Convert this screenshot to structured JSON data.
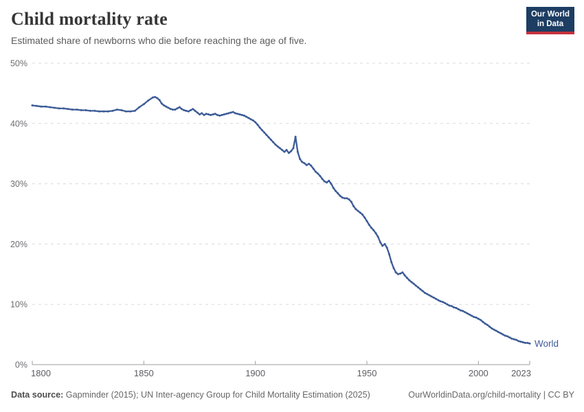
{
  "header": {
    "title": "Child mortality rate",
    "subtitle": "Estimated share of newborns who die before reaching the age of five.",
    "logo": {
      "line1": "Our World",
      "line2": "in Data"
    }
  },
  "footer": {
    "datasource_label": "Data source:",
    "datasource_text": " Gapminder (2015); UN Inter-agency Group for Child Mortality Estimation (2025)",
    "attribution": "OurWorldinData.org/child-mortality | CC BY"
  },
  "colors": {
    "line": "#3d5c97",
    "end_label": "#3d5c97",
    "logo_bg": "#1d3d63",
    "logo_bar": "#c5303e",
    "grid": "#d9d9d9",
    "axis": "#9e9e9e",
    "y_tick_label": "#6e6e73",
    "x_tick_label": "#5d5d63",
    "title": "#363636",
    "subtitle": "#5b5b5b",
    "footer": "#666666"
  },
  "chart_data": {
    "type": "line",
    "title": "Child mortality rate",
    "xlabel": "",
    "ylabel": "",
    "xlim": [
      1800,
      2023
    ],
    "ylim": [
      0,
      50
    ],
    "x_ticks": [
      1800,
      1850,
      1900,
      1950,
      2000,
      2023
    ],
    "y_ticks": [
      0,
      10,
      20,
      30,
      40,
      50
    ],
    "y_tick_suffix": "%",
    "grid": "dashed-horizontal",
    "legend_position": "end-of-line",
    "series": [
      {
        "name": "World",
        "points": [
          [
            1800,
            43.0
          ],
          [
            1802,
            42.9
          ],
          [
            1804,
            42.8
          ],
          [
            1806,
            42.8
          ],
          [
            1808,
            42.7
          ],
          [
            1810,
            42.6
          ],
          [
            1812,
            42.5
          ],
          [
            1814,
            42.5
          ],
          [
            1816,
            42.4
          ],
          [
            1818,
            42.3
          ],
          [
            1820,
            42.3
          ],
          [
            1822,
            42.2
          ],
          [
            1824,
            42.2
          ],
          [
            1826,
            42.1
          ],
          [
            1828,
            42.1
          ],
          [
            1830,
            42.0
          ],
          [
            1832,
            42.0
          ],
          [
            1834,
            42.0
          ],
          [
            1836,
            42.1
          ],
          [
            1838,
            42.3
          ],
          [
            1840,
            42.2
          ],
          [
            1842,
            42.0
          ],
          [
            1844,
            42.0
          ],
          [
            1846,
            42.1
          ],
          [
            1848,
            42.7
          ],
          [
            1850,
            43.2
          ],
          [
            1852,
            43.8
          ],
          [
            1854,
            44.3
          ],
          [
            1855,
            44.4
          ],
          [
            1856,
            44.2
          ],
          [
            1857,
            43.9
          ],
          [
            1858,
            43.3
          ],
          [
            1859,
            43.0
          ],
          [
            1860,
            42.8
          ],
          [
            1861,
            42.6
          ],
          [
            1862,
            42.4
          ],
          [
            1863,
            42.3
          ],
          [
            1864,
            42.3
          ],
          [
            1865,
            42.5
          ],
          [
            1866,
            42.7
          ],
          [
            1867,
            42.4
          ],
          [
            1868,
            42.2
          ],
          [
            1869,
            42.1
          ],
          [
            1870,
            42.0
          ],
          [
            1871,
            42.2
          ],
          [
            1872,
            42.4
          ],
          [
            1873,
            42.1
          ],
          [
            1874,
            41.8
          ],
          [
            1875,
            41.5
          ],
          [
            1876,
            41.7
          ],
          [
            1877,
            41.4
          ],
          [
            1878,
            41.6
          ],
          [
            1879,
            41.5
          ],
          [
            1880,
            41.4
          ],
          [
            1881,
            41.5
          ],
          [
            1882,
            41.6
          ],
          [
            1883,
            41.4
          ],
          [
            1884,
            41.3
          ],
          [
            1885,
            41.4
          ],
          [
            1886,
            41.5
          ],
          [
            1887,
            41.6
          ],
          [
            1888,
            41.7
          ],
          [
            1889,
            41.8
          ],
          [
            1890,
            41.9
          ],
          [
            1891,
            41.7
          ],
          [
            1892,
            41.6
          ],
          [
            1893,
            41.5
          ],
          [
            1894,
            41.4
          ],
          [
            1895,
            41.3
          ],
          [
            1896,
            41.1
          ],
          [
            1897,
            40.9
          ],
          [
            1898,
            40.7
          ],
          [
            1899,
            40.5
          ],
          [
            1900,
            40.2
          ],
          [
            1901,
            39.8
          ],
          [
            1902,
            39.3
          ],
          [
            1903,
            38.9
          ],
          [
            1904,
            38.5
          ],
          [
            1905,
            38.1
          ],
          [
            1906,
            37.7
          ],
          [
            1907,
            37.3
          ],
          [
            1908,
            36.9
          ],
          [
            1909,
            36.5
          ],
          [
            1910,
            36.2
          ],
          [
            1911,
            35.9
          ],
          [
            1912,
            35.6
          ],
          [
            1913,
            35.3
          ],
          [
            1914,
            35.6
          ],
          [
            1915,
            35.1
          ],
          [
            1916,
            35.4
          ],
          [
            1917,
            35.9
          ],
          [
            1918,
            37.8
          ],
          [
            1919,
            35.3
          ],
          [
            1920,
            34.1
          ],
          [
            1921,
            33.6
          ],
          [
            1922,
            33.4
          ],
          [
            1923,
            33.1
          ],
          [
            1924,
            33.3
          ],
          [
            1925,
            33.0
          ],
          [
            1926,
            32.5
          ],
          [
            1927,
            32.0
          ],
          [
            1928,
            31.7
          ],
          [
            1929,
            31.3
          ],
          [
            1930,
            30.8
          ],
          [
            1931,
            30.4
          ],
          [
            1932,
            30.2
          ],
          [
            1933,
            30.5
          ],
          [
            1934,
            30.0
          ],
          [
            1935,
            29.3
          ],
          [
            1936,
            28.8
          ],
          [
            1937,
            28.4
          ],
          [
            1938,
            28.0
          ],
          [
            1939,
            27.7
          ],
          [
            1940,
            27.6
          ],
          [
            1941,
            27.6
          ],
          [
            1942,
            27.4
          ],
          [
            1943,
            27.0
          ],
          [
            1944,
            26.3
          ],
          [
            1945,
            25.8
          ],
          [
            1946,
            25.5
          ],
          [
            1947,
            25.2
          ],
          [
            1948,
            24.9
          ],
          [
            1949,
            24.4
          ],
          [
            1950,
            23.8
          ],
          [
            1951,
            23.2
          ],
          [
            1952,
            22.7
          ],
          [
            1953,
            22.3
          ],
          [
            1954,
            21.8
          ],
          [
            1955,
            21.2
          ],
          [
            1956,
            20.3
          ],
          [
            1957,
            19.7
          ],
          [
            1958,
            20.0
          ],
          [
            1959,
            19.4
          ],
          [
            1960,
            18.3
          ],
          [
            1961,
            17.0
          ],
          [
            1962,
            16.0
          ],
          [
            1963,
            15.3
          ],
          [
            1964,
            15.0
          ],
          [
            1965,
            15.1
          ],
          [
            1966,
            15.3
          ],
          [
            1967,
            14.8
          ],
          [
            1968,
            14.4
          ],
          [
            1969,
            14.0
          ],
          [
            1970,
            13.7
          ],
          [
            1971,
            13.4
          ],
          [
            1972,
            13.1
          ],
          [
            1973,
            12.8
          ],
          [
            1974,
            12.5
          ],
          [
            1975,
            12.2
          ],
          [
            1976,
            11.9
          ],
          [
            1977,
            11.7
          ],
          [
            1978,
            11.5
          ],
          [
            1979,
            11.3
          ],
          [
            1980,
            11.1
          ],
          [
            1981,
            10.9
          ],
          [
            1982,
            10.7
          ],
          [
            1983,
            10.5
          ],
          [
            1984,
            10.4
          ],
          [
            1985,
            10.2
          ],
          [
            1986,
            10.0
          ],
          [
            1987,
            9.8
          ],
          [
            1988,
            9.7
          ],
          [
            1989,
            9.5
          ],
          [
            1990,
            9.4
          ],
          [
            1991,
            9.2
          ],
          [
            1992,
            9.0
          ],
          [
            1993,
            8.9
          ],
          [
            1994,
            8.7
          ],
          [
            1995,
            8.5
          ],
          [
            1996,
            8.3
          ],
          [
            1997,
            8.1
          ],
          [
            1998,
            7.9
          ],
          [
            1999,
            7.8
          ],
          [
            2000,
            7.6
          ],
          [
            2001,
            7.4
          ],
          [
            2002,
            7.1
          ],
          [
            2003,
            6.8
          ],
          [
            2004,
            6.6
          ],
          [
            2005,
            6.3
          ],
          [
            2006,
            6.0
          ],
          [
            2007,
            5.8
          ],
          [
            2008,
            5.6
          ],
          [
            2009,
            5.4
          ],
          [
            2010,
            5.2
          ],
          [
            2011,
            5.0
          ],
          [
            2012,
            4.8
          ],
          [
            2013,
            4.7
          ],
          [
            2014,
            4.5
          ],
          [
            2015,
            4.3
          ],
          [
            2016,
            4.2
          ],
          [
            2017,
            4.1
          ],
          [
            2018,
            3.9
          ],
          [
            2019,
            3.8
          ],
          [
            2020,
            3.7
          ],
          [
            2021,
            3.6
          ],
          [
            2022,
            3.6
          ],
          [
            2023,
            3.5
          ]
        ]
      }
    ]
  }
}
